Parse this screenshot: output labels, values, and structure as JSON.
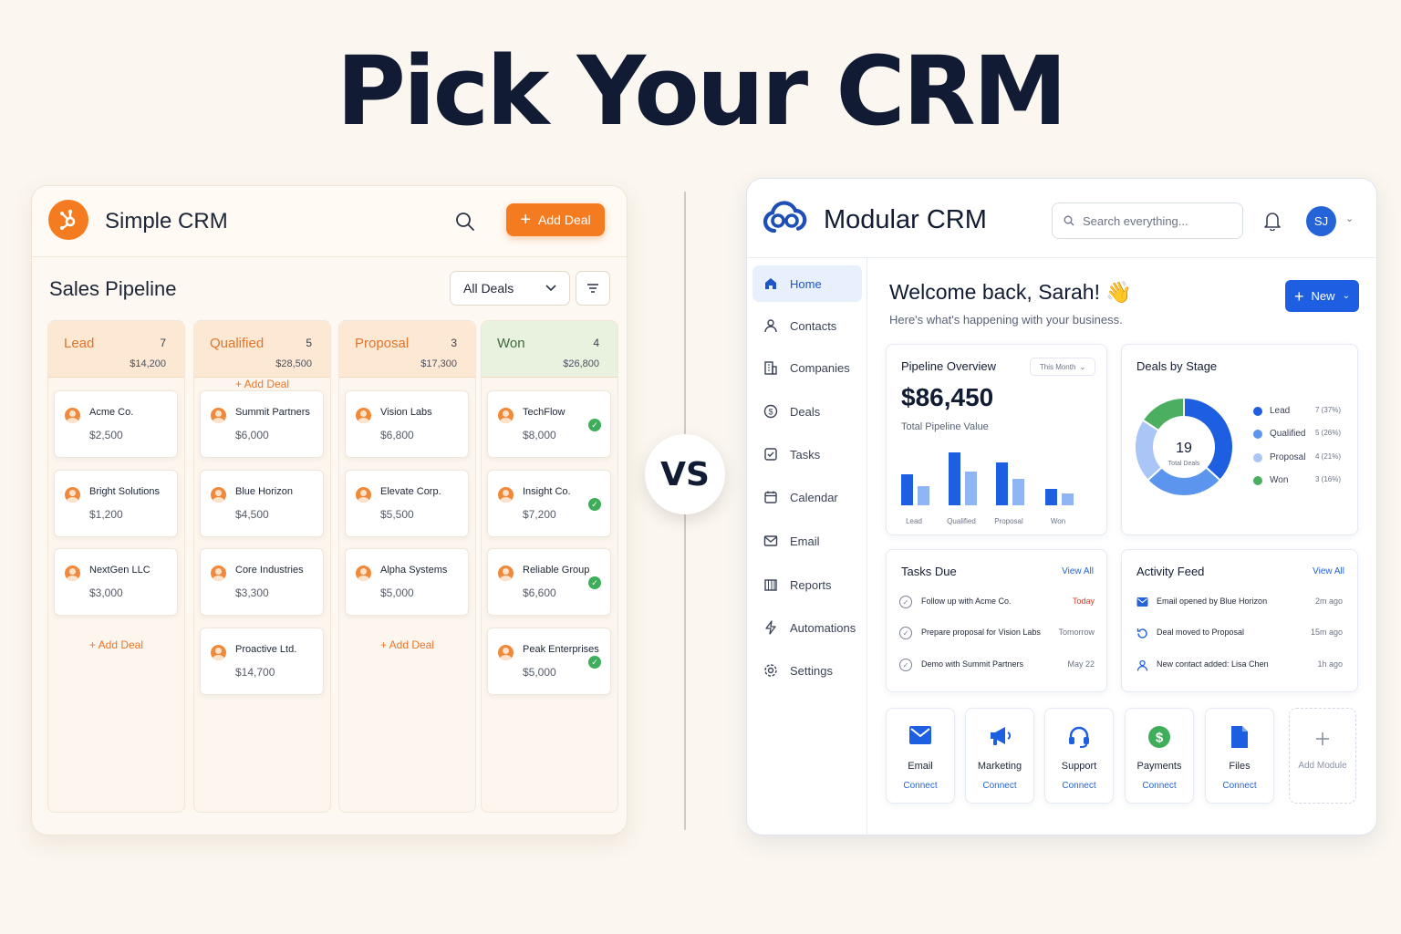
{
  "headline": "Pick Your CRM",
  "vs_label": "VS",
  "simple": {
    "title": "Simple CRM",
    "add_deal_label": "Add Deal",
    "pipeline_title": "Sales Pipeline",
    "filter_value": "All Deals",
    "add_deal_link": "+ Add Deal",
    "accent_color": "#f47b20",
    "columns": [
      {
        "name": "Lead",
        "count": "7",
        "total": "$14,200",
        "color": "#e2742b",
        "bg": "#fde8d4",
        "deals": [
          {
            "name": "Acme Co.",
            "value": "$2,500"
          },
          {
            "name": "Bright Solutions",
            "value": "$1,200"
          },
          {
            "name": "NextGen LLC",
            "value": "$3,000"
          }
        ]
      },
      {
        "name": "Qualified",
        "count": "5",
        "total": "$28,500",
        "color": "#e2742b",
        "bg": "#fde8d4",
        "deals": [
          {
            "name": "Summit Partners",
            "value": "$6,000"
          },
          {
            "name": "Blue Horizon",
            "value": "$4,500"
          },
          {
            "name": "Core Industries",
            "value": "$3,300"
          },
          {
            "name": "Proactive Ltd.",
            "value": "$14,700"
          }
        ]
      },
      {
        "name": "Proposal",
        "count": "3",
        "total": "$17,300",
        "color": "#e2742b",
        "bg": "#fde8d4",
        "deals": [
          {
            "name": "Vision Labs",
            "value": "$6,800"
          },
          {
            "name": "Elevate Corp.",
            "value": "$5,500"
          },
          {
            "name": "Alpha Systems",
            "value": "$5,000"
          }
        ]
      },
      {
        "name": "Won",
        "count": "4",
        "total": "$26,800",
        "color": "#3d6b3d",
        "bg": "#e9f1df",
        "deals": [
          {
            "name": "TechFlow",
            "value": "$8,000"
          },
          {
            "name": "Insight Co.",
            "value": "$7,200"
          },
          {
            "name": "Reliable Group",
            "value": "$6,600"
          },
          {
            "name": "Peak Enterprises",
            "value": "$5,000"
          }
        ]
      }
    ]
  },
  "modular": {
    "title": "Modular CRM",
    "search_placeholder": "Search everything...",
    "avatar_initials": "SJ",
    "accent_color": "#1d5fe0",
    "nav": [
      {
        "label": "Home",
        "icon": "home-icon",
        "active": true
      },
      {
        "label": "Contacts",
        "icon": "user-icon"
      },
      {
        "label": "Companies",
        "icon": "building-icon"
      },
      {
        "label": "Deals",
        "icon": "dollar-icon"
      },
      {
        "label": "Tasks",
        "icon": "checkbox-icon"
      },
      {
        "label": "Calendar",
        "icon": "calendar-icon"
      },
      {
        "label": "Email",
        "icon": "mail-icon"
      },
      {
        "label": "Reports",
        "icon": "reports-icon"
      },
      {
        "label": "Automations",
        "icon": "bolt-icon"
      },
      {
        "label": "Settings",
        "icon": "gear-icon"
      }
    ],
    "welcome": "Welcome back, Sarah! 👋",
    "welcome_sub": "Here's what's happening with your business.",
    "new_label": "New",
    "pipeline": {
      "title": "Pipeline Overview",
      "period": "This Month",
      "value": "$86,450",
      "value_label": "Total Pipeline Value"
    },
    "deals_by_stage": {
      "title": "Deals by Stage",
      "total": "19",
      "total_label": "Total Deals"
    },
    "tasks": {
      "title": "Tasks Due",
      "view_all": "View All",
      "items": [
        {
          "text": "Follow up with Acme Co.",
          "due": "Today",
          "urgent": true
        },
        {
          "text": "Prepare proposal for Vision Labs",
          "due": "Tomorrow"
        },
        {
          "text": "Demo with Summit Partners",
          "due": "May 22"
        }
      ]
    },
    "activity": {
      "title": "Activity Feed",
      "view_all": "View All",
      "items": [
        {
          "text": "Email opened by Blue Horizon",
          "time": "2m ago",
          "icon": "mail-icon"
        },
        {
          "text": "Deal moved to Proposal",
          "time": "15m ago",
          "icon": "refresh-icon"
        },
        {
          "text": "New contact added: Lisa Chen",
          "time": "1h ago",
          "icon": "user-icon"
        }
      ]
    },
    "modules": [
      {
        "name": "Email",
        "action": "Connect",
        "icon": "mail-icon"
      },
      {
        "name": "Marketing",
        "action": "Connect",
        "icon": "megaphone-icon"
      },
      {
        "name": "Support",
        "action": "Connect",
        "icon": "headset-icon"
      },
      {
        "name": "Payments",
        "action": "Connect",
        "icon": "dollar-coin-icon"
      },
      {
        "name": "Files",
        "action": "Connect",
        "icon": "file-icon"
      },
      {
        "name": "Add Module",
        "icon": "plus-icon"
      }
    ]
  },
  "chart_data": [
    {
      "type": "bar",
      "categories": [
        "Lead",
        "Qualified",
        "Proposal",
        "Won"
      ],
      "series": [
        {
          "values": [
            34,
            58,
            47,
            18
          ],
          "color": "#1d5fe0"
        },
        {
          "values": [
            21,
            37,
            29,
            13
          ],
          "color": "#8fb5f3"
        }
      ],
      "grid": false
    },
    {
      "type": "pie",
      "donut": true,
      "categories": [
        "Lead",
        "Qualified",
        "Proposal",
        "Won"
      ],
      "values": [
        7,
        5,
        4,
        3
      ],
      "labels": [
        "7 (37%)",
        "5 (26%)",
        "4 (21%)",
        "3 (16%)"
      ],
      "colors": [
        "#1d5fe0",
        "#5b95ee",
        "#a9c6f6",
        "#4caf60"
      ],
      "legend": "right"
    }
  ]
}
